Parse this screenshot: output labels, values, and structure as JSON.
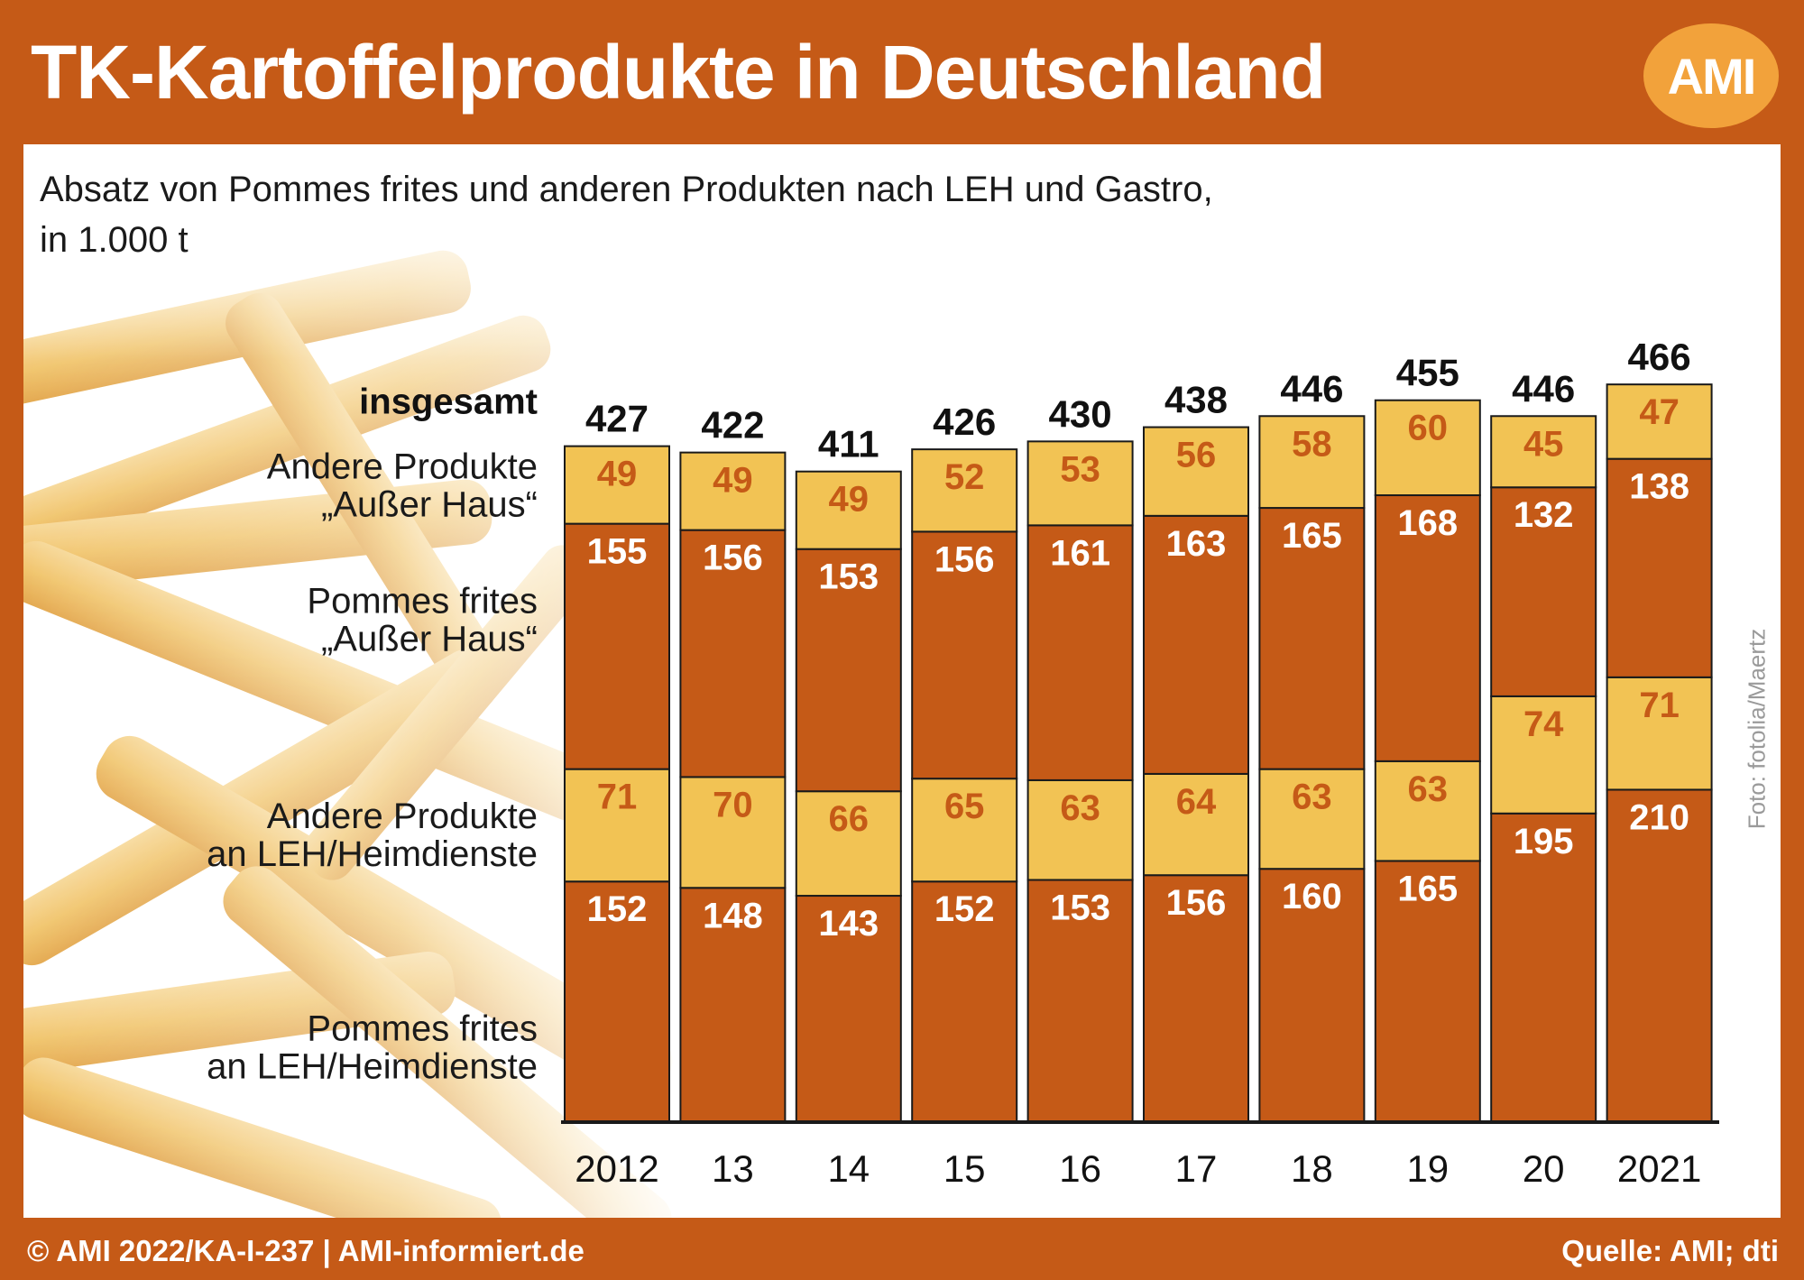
{
  "header": {
    "title": "TK-Kartoffelprodukte in Deutschland",
    "logo_text": "AMI"
  },
  "subtitle_line1": "Absatz von Pommes frites und anderen Produkten nach LEH und Gastro,",
  "subtitle_line2": "in 1.000 t",
  "photo_credit": "Foto: fotolia/Maertz",
  "footer": {
    "left": "© AMI 2022/KA-I-237 | AMI-informiert.de",
    "right": "Quelle: AMI; dti"
  },
  "colors": {
    "dark_orange": "#c55a17",
    "yellow": "#f2c354",
    "yellow_label": "#c55a17",
    "dark_label": "#ffffff"
  },
  "chart_data": {
    "type": "bar",
    "stacked": true,
    "categories": [
      "2012",
      "13",
      "14",
      "15",
      "16",
      "17",
      "18",
      "19",
      "20",
      "2021"
    ],
    "total_label": "insgesamt",
    "totals": [
      427,
      422,
      411,
      426,
      430,
      438,
      446,
      455,
      446,
      466
    ],
    "series": [
      {
        "name": "Pommes frites an LEH/Heimdienste",
        "legend_lines": [
          "Pommes frites",
          "an LEH/Heimdienste"
        ],
        "color": "#c55a17",
        "values": [
          152,
          148,
          143,
          152,
          153,
          156,
          160,
          165,
          195,
          210
        ]
      },
      {
        "name": "Andere Produkte an LEH/Heimdienste",
        "legend_lines": [
          "Andere Produkte",
          "an LEH/Heimdienste"
        ],
        "color": "#f2c354",
        "values": [
          71,
          70,
          66,
          65,
          63,
          64,
          63,
          63,
          74,
          71
        ]
      },
      {
        "name": "Pommes frites „Außer Haus“",
        "legend_lines": [
          "Pommes frites",
          "„Außer Haus“"
        ],
        "color": "#c55a17",
        "values": [
          155,
          156,
          153,
          156,
          161,
          163,
          165,
          168,
          132,
          138
        ]
      },
      {
        "name": "Andere Produkte „Außer Haus“",
        "legend_lines": [
          "Andere Produkte",
          "„Außer Haus“"
        ],
        "color": "#f2c354",
        "values": [
          49,
          49,
          49,
          52,
          53,
          56,
          58,
          60,
          45,
          47
        ]
      }
    ],
    "ylim": [
      0,
      466
    ],
    "grid": false,
    "legend": "left"
  }
}
